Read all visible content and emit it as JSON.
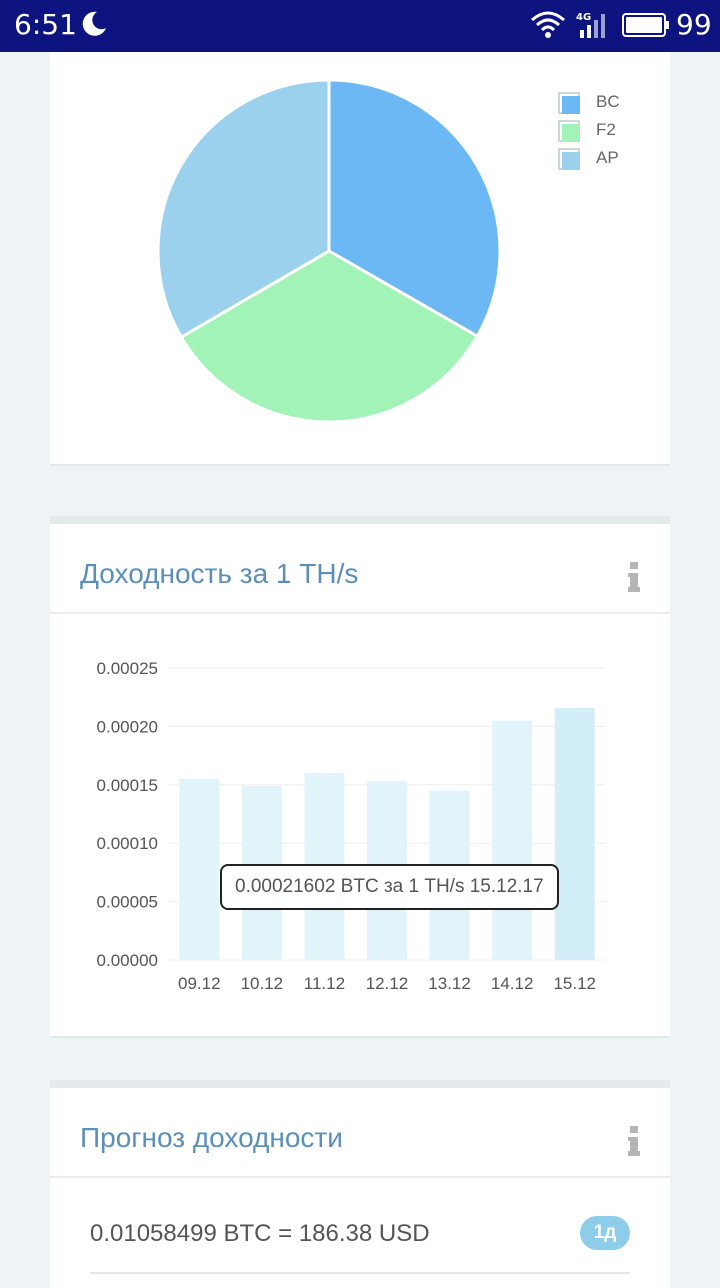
{
  "status_bar": {
    "time": "6:51",
    "network": "4G",
    "battery": "99"
  },
  "pie_card": {
    "chart_data": {
      "type": "pie",
      "slices": [
        {
          "label": "BC",
          "value": 33.3,
          "color": "#6bb8f4"
        },
        {
          "label": "F2",
          "value": 33.3,
          "color": "#a2f3b8"
        },
        {
          "label": "AP",
          "value": 33.4,
          "color": "#9bd1ec"
        }
      ],
      "legend_position": "top-right"
    }
  },
  "profit_card": {
    "title": "Доходность за 1 TH/s",
    "tooltip": "0.00021602 BTC за 1 TH/s 15.12.17",
    "chart_data": {
      "type": "bar",
      "categories": [
        "09.12",
        "10.12",
        "11.12",
        "12.12",
        "13.12",
        "14.12",
        "15.12"
      ],
      "values": [
        0.000155,
        0.000149,
        0.00016,
        0.000153,
        0.000145,
        0.000205,
        0.00021602
      ],
      "y_ticks": [
        "0.00000",
        "0.00005",
        "0.00010",
        "0.00015",
        "0.00020",
        "0.00025"
      ],
      "ylim": [
        0,
        0.00025
      ],
      "highlighted_index": 6,
      "colors": {
        "bar": "#e0f4fa",
        "bar_highlight": "#d2eef8",
        "grid": "#eeeeee"
      }
    }
  },
  "forecast_card": {
    "title": "Прогноз доходности",
    "rows": [
      {
        "value": "0.01058499 BTC = 186.38 USD",
        "period": "1д"
      }
    ]
  },
  "colors": {
    "status_bar": "#0d1480",
    "title": "#5b8fba",
    "background": "#eef3f6",
    "badge": "#8ecdea"
  }
}
